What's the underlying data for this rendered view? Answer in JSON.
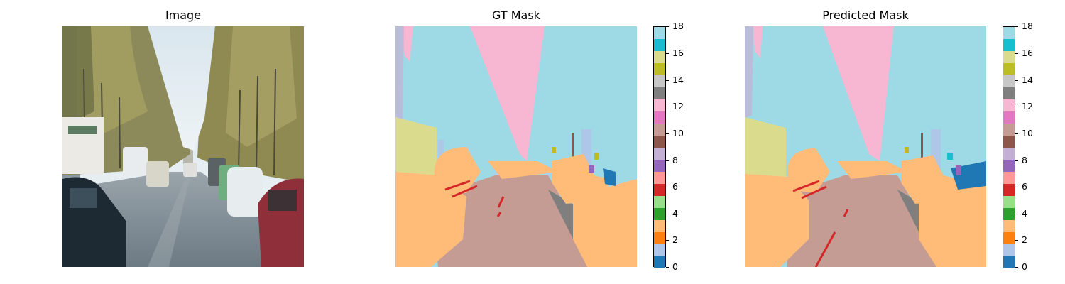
{
  "titles": {
    "image": "Image",
    "gt": "GT Mask",
    "pred": "Predicted Mask"
  },
  "colorbar": {
    "min": 0,
    "max": 18,
    "ticks": [
      "0",
      "2",
      "4",
      "6",
      "8",
      "10",
      "12",
      "14",
      "16",
      "18"
    ],
    "colors": [
      "#1f77b4",
      "#aec7e8",
      "#ff7f0e",
      "#ffbb78",
      "#2ca02c",
      "#98df8a",
      "#d62728",
      "#ff9896",
      "#9467bd",
      "#c5b0d5",
      "#8c564b",
      "#c49c94",
      "#e377c2",
      "#f7b6d2",
      "#7f7f7f",
      "#c7c7c7",
      "#bcbd22",
      "#dbdb8d",
      "#17becf",
      "#9edae5"
    ]
  },
  "palette": {
    "sky": "#9edae5",
    "building": "#f7b6d2",
    "vegetation": "#c5b0d5",
    "truck": "#dbdb8d",
    "car": "#ffbb78",
    "road": "#c49c94",
    "sidewalk": "#7f7f7f",
    "lane_marking": "#d62728",
    "pole": "#8c564b",
    "sign": "#bcbd22",
    "person": "#9467bd",
    "vehicle_blue": "#1f77b4",
    "cyan": "#17becf"
  }
}
